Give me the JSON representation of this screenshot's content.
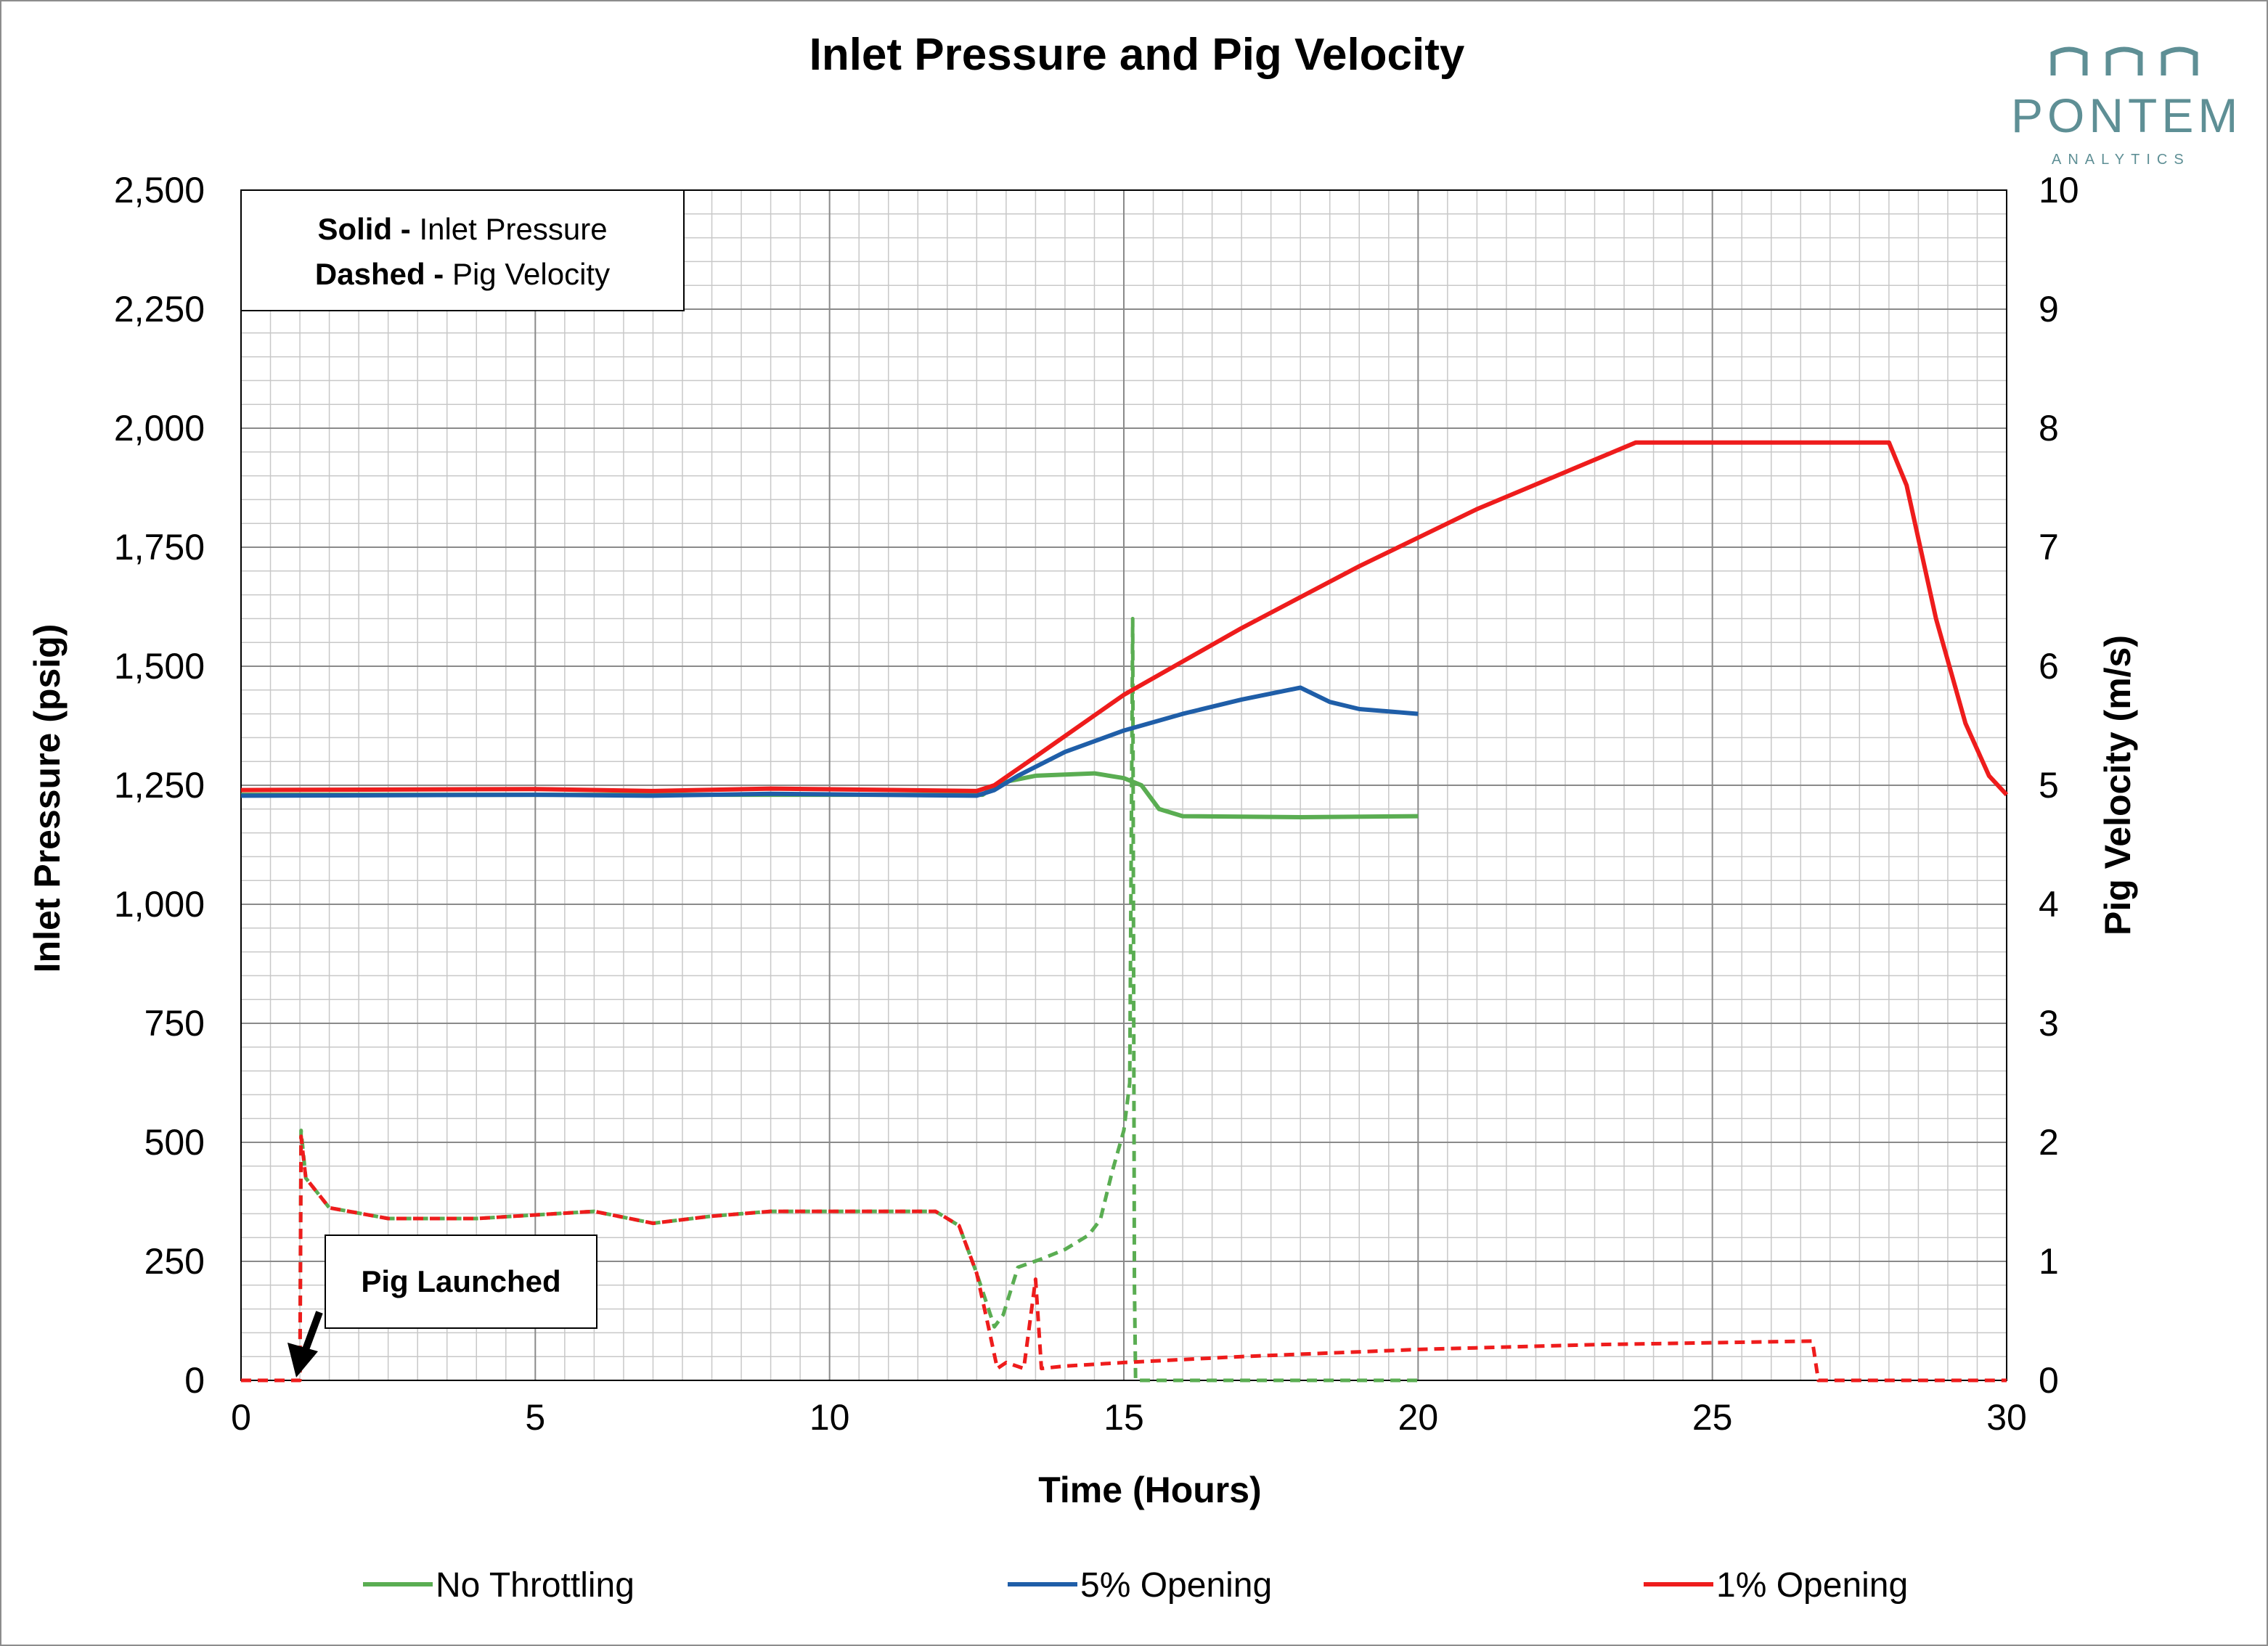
{
  "logo": {
    "name": "PONTEM",
    "sub": "ANALYTICS",
    "color": "#5e8f95",
    "accent": "#3fd5d5"
  },
  "annotation_box": {
    "line1_bold": "Solid - ",
    "line1_text": "Inlet Pressure",
    "line2_bold": "Dashed - ",
    "line2_text": "Pig Velocity"
  },
  "callout": {
    "label": "Pig Launched"
  },
  "chart_data": {
    "type": "line",
    "title": "Inlet Pressure and Pig Velocity",
    "xlabel": "Time (Hours)",
    "ylabel": "Inlet Pressure (psig)",
    "y2label": "Pig Velocity (m/s)",
    "xlim": [
      0,
      30
    ],
    "ylim": [
      0,
      2500
    ],
    "y2lim": [
      0,
      10
    ],
    "x_ticks": [
      "0",
      "5",
      "10",
      "15",
      "20",
      "25",
      "30"
    ],
    "y_ticks": [
      "0",
      "250",
      "500",
      "750",
      "1,000",
      "1,250",
      "1,500",
      "1,750",
      "2,000",
      "2,250",
      "2,500"
    ],
    "y2_ticks": [
      "0",
      "1",
      "2",
      "3",
      "4",
      "5",
      "6",
      "7",
      "8",
      "9",
      "10"
    ],
    "grid": true,
    "legend_position": "bottom",
    "series": [
      {
        "name": "No Throttling",
        "color": "#5aad52",
        "pressure": [
          [
            0,
            1230
          ],
          [
            12.6,
            1230
          ],
          [
            12.9,
            1255
          ],
          [
            13.5,
            1270
          ],
          [
            14.5,
            1275
          ],
          [
            15.0,
            1265
          ],
          [
            15.3,
            1250
          ],
          [
            15.6,
            1200
          ],
          [
            16.0,
            1185
          ],
          [
            18.0,
            1183
          ],
          [
            20.0,
            1185
          ]
        ],
        "velocity": [
          [
            0,
            0
          ],
          [
            1.0,
            0
          ],
          [
            1.02,
            2.1
          ],
          [
            1.1,
            1.7
          ],
          [
            1.5,
            1.45
          ],
          [
            2.5,
            1.36
          ],
          [
            4.0,
            1.36
          ],
          [
            6.0,
            1.42
          ],
          [
            7.0,
            1.32
          ],
          [
            8.0,
            1.38
          ],
          [
            9.0,
            1.42
          ],
          [
            11.8,
            1.42
          ],
          [
            12.2,
            1.3
          ],
          [
            12.5,
            0.9
          ],
          [
            12.8,
            0.45
          ],
          [
            12.95,
            0.55
          ],
          [
            13.2,
            0.95
          ],
          [
            13.6,
            1.02
          ],
          [
            14.0,
            1.1
          ],
          [
            14.4,
            1.22
          ],
          [
            14.6,
            1.35
          ],
          [
            14.8,
            1.75
          ],
          [
            15.0,
            2.1
          ],
          [
            15.1,
            2.5
          ],
          [
            15.12,
            4.0
          ],
          [
            15.15,
            6.4
          ],
          [
            15.18,
            0.8
          ],
          [
            15.2,
            0
          ],
          [
            20.0,
            0
          ]
        ]
      },
      {
        "name": "5% Opening",
        "color": "#1f5ea8",
        "pressure": [
          [
            0,
            1228
          ],
          [
            5.0,
            1230
          ],
          [
            7.0,
            1228
          ],
          [
            9.0,
            1232
          ],
          [
            12.5,
            1228
          ],
          [
            12.8,
            1240
          ],
          [
            13.2,
            1270
          ],
          [
            14.0,
            1320
          ],
          [
            15.0,
            1365
          ],
          [
            16.0,
            1400
          ],
          [
            17.0,
            1430
          ],
          [
            18.0,
            1455
          ],
          [
            18.5,
            1425
          ],
          [
            19.0,
            1410
          ],
          [
            20.0,
            1400
          ]
        ],
        "velocity": []
      },
      {
        "name": "1% Opening",
        "color": "#ee1c1c",
        "pressure": [
          [
            0,
            1240
          ],
          [
            5.0,
            1242
          ],
          [
            7.0,
            1238
          ],
          [
            9.0,
            1243
          ],
          [
            12.5,
            1238
          ],
          [
            12.8,
            1250
          ],
          [
            13.5,
            1310
          ],
          [
            15.0,
            1440
          ],
          [
            17.0,
            1580
          ],
          [
            19.0,
            1710
          ],
          [
            21.0,
            1830
          ],
          [
            23.7,
            1970
          ],
          [
            28.0,
            1970
          ],
          [
            28.3,
            1880
          ],
          [
            28.8,
            1600
          ],
          [
            29.3,
            1380
          ],
          [
            29.7,
            1270
          ],
          [
            30.0,
            1230
          ]
        ],
        "velocity": [
          [
            0,
            0
          ],
          [
            1.0,
            0
          ],
          [
            1.02,
            2.05
          ],
          [
            1.1,
            1.7
          ],
          [
            1.5,
            1.45
          ],
          [
            2.5,
            1.36
          ],
          [
            4.0,
            1.36
          ],
          [
            6.0,
            1.42
          ],
          [
            7.0,
            1.32
          ],
          [
            8.0,
            1.38
          ],
          [
            9.0,
            1.42
          ],
          [
            11.8,
            1.42
          ],
          [
            12.2,
            1.3
          ],
          [
            12.5,
            0.9
          ],
          [
            12.7,
            0.45
          ],
          [
            12.85,
            0.1
          ],
          [
            13.0,
            0.15
          ],
          [
            13.3,
            0.1
          ],
          [
            13.5,
            0.85
          ],
          [
            13.6,
            0.1
          ],
          [
            14.0,
            0.12
          ],
          [
            15.0,
            0.15
          ],
          [
            17.0,
            0.2
          ],
          [
            20.0,
            0.26
          ],
          [
            23.0,
            0.3
          ],
          [
            26.7,
            0.33
          ],
          [
            26.8,
            0
          ],
          [
            30.0,
            0
          ]
        ]
      }
    ]
  }
}
